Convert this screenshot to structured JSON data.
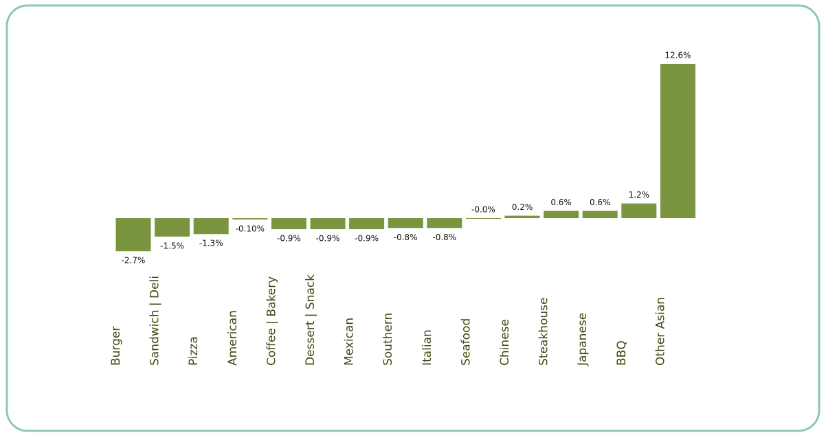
{
  "chart_data": {
    "type": "bar",
    "categories": [
      "Burger",
      "Sandwich | Deli",
      "Pizza",
      "American",
      "Coffee | Bakery",
      "Dessert | Snack",
      "Mexican",
      "Southern",
      "Italian",
      "Seafood",
      "Chinese",
      "Steakhouse",
      "Japanese",
      "BBQ",
      "Other Asian"
    ],
    "values": [
      -2.7,
      -1.5,
      -1.3,
      -0.1,
      -0.9,
      -0.9,
      -0.9,
      -0.8,
      -0.8,
      0,
      0.2,
      0.6,
      0.6,
      1.2,
      12.6
    ],
    "value_labels": [
      "-2.7%",
      "-1.5%",
      "-1.3%",
      "-0.10%",
      "-0.9%",
      "-0.9%",
      "-0.9%",
      "-0.8%",
      "-0.8%",
      "-0.0%",
      "0.2%",
      "0.6%",
      "0.6%",
      "1.2%",
      "12.6%"
    ],
    "color": "#7a9440"
  }
}
